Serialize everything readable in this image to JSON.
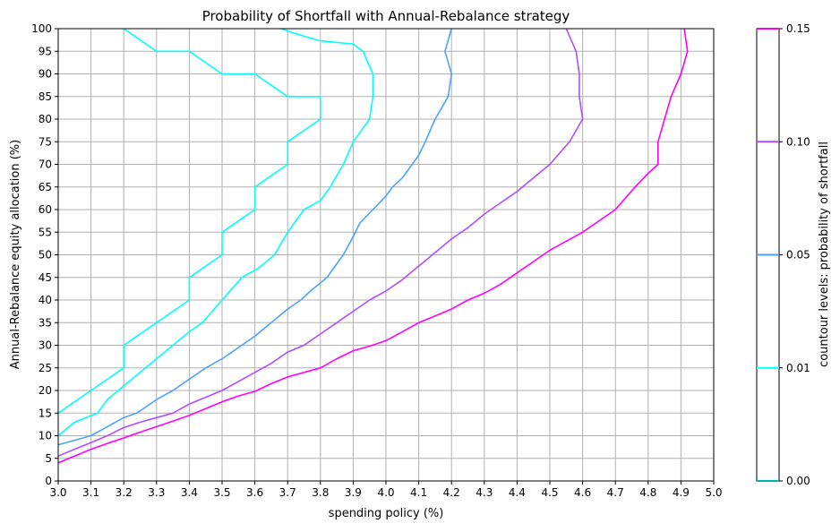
{
  "chart_data": {
    "type": "line",
    "title": "Probability of Shortfall with Annual-Rebalance strategy",
    "xlabel": "spending policy (%)",
    "ylabel": "Annual-Rebalance equity allocation (%)",
    "xlim": [
      3.0,
      5.0
    ],
    "ylim": [
      0,
      100
    ],
    "x_ticks": [
      "3.0",
      "3.1",
      "3.2",
      "3.3",
      "3.4",
      "3.5",
      "3.6",
      "3.7",
      "3.8",
      "3.9",
      "4.0",
      "4.1",
      "4.2",
      "4.3",
      "4.4",
      "4.5",
      "4.6",
      "4.7",
      "4.8",
      "4.9",
      "5.0"
    ],
    "y_ticks": [
      "0",
      "5",
      "10",
      "15",
      "20",
      "25",
      "30",
      "35",
      "40",
      "45",
      "50",
      "55",
      "60",
      "65",
      "70",
      "75",
      "80",
      "85",
      "90",
      "95",
      "100"
    ],
    "grid": true,
    "series": [
      {
        "level": "0.01",
        "color": "#00ffff",
        "points": [
          [
            3.0,
            15
          ],
          [
            3.1,
            20
          ],
          [
            3.2,
            25
          ],
          [
            3.2,
            30
          ],
          [
            3.3,
            35
          ],
          [
            3.4,
            40
          ],
          [
            3.4,
            45
          ],
          [
            3.5,
            50
          ],
          [
            3.5,
            55
          ],
          [
            3.6,
            60
          ],
          [
            3.6,
            65
          ],
          [
            3.7,
            70
          ],
          [
            3.7,
            75
          ],
          [
            3.8,
            80
          ],
          [
            3.8,
            85
          ],
          [
            3.7,
            85
          ],
          [
            3.6,
            90
          ],
          [
            3.5,
            90
          ],
          [
            3.4,
            95
          ],
          [
            3.3,
            95
          ],
          [
            3.2,
            100
          ]
        ]
      },
      {
        "level": "0.01",
        "color": "#00ffff",
        "points": [
          [
            3.68,
            100
          ],
          [
            3.72,
            99
          ],
          [
            3.8,
            97.3
          ],
          [
            3.9,
            96.6
          ],
          [
            3.93,
            95
          ],
          [
            3.96,
            90
          ],
          [
            3.96,
            85
          ],
          [
            3.95,
            80
          ],
          [
            3.9,
            75
          ],
          [
            3.87,
            70
          ],
          [
            3.83,
            65
          ],
          [
            3.8,
            62
          ],
          [
            3.75,
            60
          ],
          [
            3.7,
            55
          ],
          [
            3.66,
            50
          ],
          [
            3.61,
            47
          ],
          [
            3.56,
            45
          ],
          [
            3.5,
            40
          ],
          [
            3.44,
            35
          ],
          [
            3.4,
            33
          ],
          [
            3.35,
            30
          ],
          [
            3.3,
            27
          ],
          [
            3.25,
            24
          ],
          [
            3.2,
            21
          ],
          [
            3.15,
            18
          ],
          [
            3.12,
            15
          ],
          [
            3.05,
            13
          ],
          [
            3.0,
            10
          ]
        ]
      },
      {
        "level": "0.05",
        "color": "#4ca2ff",
        "points": [
          [
            4.2,
            100
          ],
          [
            4.18,
            95
          ],
          [
            4.2,
            90
          ],
          [
            4.19,
            85
          ],
          [
            4.15,
            80
          ],
          [
            4.12,
            75
          ],
          [
            4.1,
            72
          ],
          [
            4.08,
            70
          ],
          [
            4.05,
            67
          ],
          [
            4.02,
            65
          ],
          [
            4.0,
            63
          ],
          [
            3.96,
            60
          ],
          [
            3.92,
            57
          ],
          [
            3.9,
            54
          ],
          [
            3.87,
            50
          ],
          [
            3.84,
            47
          ],
          [
            3.82,
            45
          ],
          [
            3.77,
            42
          ],
          [
            3.74,
            40
          ],
          [
            3.7,
            38
          ],
          [
            3.65,
            35
          ],
          [
            3.6,
            32
          ],
          [
            3.56,
            30
          ],
          [
            3.5,
            27
          ],
          [
            3.45,
            25
          ],
          [
            3.4,
            22.5
          ],
          [
            3.35,
            20
          ],
          [
            3.3,
            18
          ],
          [
            3.24,
            15
          ],
          [
            3.2,
            14
          ],
          [
            3.15,
            12
          ],
          [
            3.1,
            10
          ],
          [
            3.05,
            9
          ],
          [
            3.0,
            8
          ]
        ]
      },
      {
        "level": "0.10",
        "color": "#b24cff",
        "points": [
          [
            4.55,
            100
          ],
          [
            4.58,
            95
          ],
          [
            4.59,
            90
          ],
          [
            4.59,
            85
          ],
          [
            4.6,
            80
          ],
          [
            4.56,
            75
          ],
          [
            4.5,
            70
          ],
          [
            4.45,
            67
          ],
          [
            4.4,
            64
          ],
          [
            4.35,
            61.5
          ],
          [
            4.3,
            59
          ],
          [
            4.25,
            56
          ],
          [
            4.2,
            53.5
          ],
          [
            4.15,
            50.5
          ],
          [
            4.1,
            47.5
          ],
          [
            4.05,
            44.5
          ],
          [
            4.0,
            42
          ],
          [
            3.95,
            40
          ],
          [
            3.9,
            37.5
          ],
          [
            3.85,
            35
          ],
          [
            3.8,
            32.5
          ],
          [
            3.75,
            30
          ],
          [
            3.7,
            28.5
          ],
          [
            3.65,
            26
          ],
          [
            3.6,
            24
          ],
          [
            3.55,
            22
          ],
          [
            3.5,
            20
          ],
          [
            3.45,
            18.5
          ],
          [
            3.4,
            17
          ],
          [
            3.35,
            15
          ],
          [
            3.3,
            14
          ],
          [
            3.25,
            13
          ],
          [
            3.2,
            11.8
          ],
          [
            3.15,
            10
          ],
          [
            3.1,
            8.5
          ],
          [
            3.05,
            7
          ],
          [
            3.0,
            5.5
          ]
        ]
      },
      {
        "level": "0.10",
        "color": "#ff00ff",
        "points": [
          [
            4.91,
            100
          ],
          [
            4.92,
            95
          ],
          [
            4.9,
            90
          ],
          [
            4.87,
            85
          ],
          [
            4.85,
            80
          ],
          [
            4.83,
            75
          ],
          [
            4.83,
            70
          ],
          [
            4.8,
            68
          ],
          [
            4.76,
            65
          ],
          [
            4.7,
            60
          ],
          [
            4.65,
            57.5
          ],
          [
            4.6,
            55
          ],
          [
            4.55,
            53
          ],
          [
            4.5,
            51
          ],
          [
            4.45,
            48.5
          ],
          [
            4.4,
            46
          ],
          [
            4.35,
            43.5
          ],
          [
            4.3,
            41.5
          ],
          [
            4.25,
            40
          ],
          [
            4.2,
            38
          ],
          [
            4.15,
            36.5
          ],
          [
            4.1,
            35
          ],
          [
            4.05,
            33
          ],
          [
            4.0,
            31
          ],
          [
            3.95,
            29.8
          ],
          [
            3.9,
            28.8
          ],
          [
            3.85,
            27
          ],
          [
            3.8,
            25
          ],
          [
            3.75,
            24
          ],
          [
            3.7,
            23
          ],
          [
            3.65,
            21.5
          ],
          [
            3.6,
            19.8
          ],
          [
            3.55,
            18.8
          ],
          [
            3.5,
            17.5
          ],
          [
            3.45,
            16
          ],
          [
            3.4,
            14.5
          ],
          [
            3.35,
            13.2
          ],
          [
            3.3,
            12
          ],
          [
            3.25,
            10.8
          ],
          [
            3.2,
            9.5
          ],
          [
            3.15,
            8.3
          ],
          [
            3.1,
            7
          ],
          [
            3.05,
            5.5
          ],
          [
            3.0,
            4
          ]
        ]
      }
    ],
    "colorbar": {
      "label": "countour levels: probability of shortfall",
      "range": [
        0.0,
        0.15
      ],
      "ticks": [
        "0.00",
        "0.01",
        "0.05",
        "0.10",
        "0.15"
      ],
      "tick_values": [
        0.0,
        0.01,
        0.05,
        0.1,
        0.15
      ],
      "tick_positions": [
        0.0,
        0.25,
        0.5,
        0.75,
        1.0
      ],
      "line_colors": [
        "#00b3b3",
        "#00ffff",
        "#4ca2ff",
        "#b24cff",
        "#ff00ff"
      ]
    }
  }
}
